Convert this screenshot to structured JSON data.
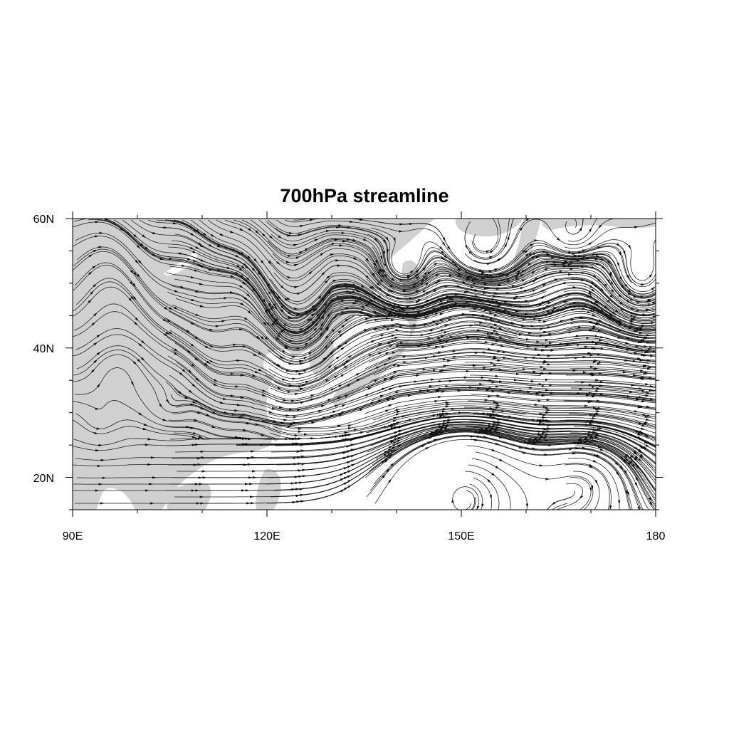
{
  "title": "700hPa streamline",
  "map": {
    "projection": "cylindrical equidistant",
    "lon_range": [
      90,
      180
    ],
    "lat_range": [
      15,
      60
    ],
    "field": "700hPa wind streamlines",
    "land_fill_color": "#d0d0d0",
    "ocean_fill_color": "#ffffff",
    "streamline_color": "#1a1a1a",
    "x_ticks": [
      {
        "lon": 90,
        "label": "90E"
      },
      {
        "lon": 120,
        "label": "120E"
      },
      {
        "lon": 150,
        "label": "150E"
      },
      {
        "lon": 180,
        "label": "180"
      }
    ],
    "y_ticks": [
      {
        "lat": 20,
        "label": "20N"
      },
      {
        "lat": 40,
        "label": "40N"
      },
      {
        "lat": 60,
        "label": "60N"
      }
    ],
    "x_minor_step": 10,
    "y_minor_step": 5
  }
}
